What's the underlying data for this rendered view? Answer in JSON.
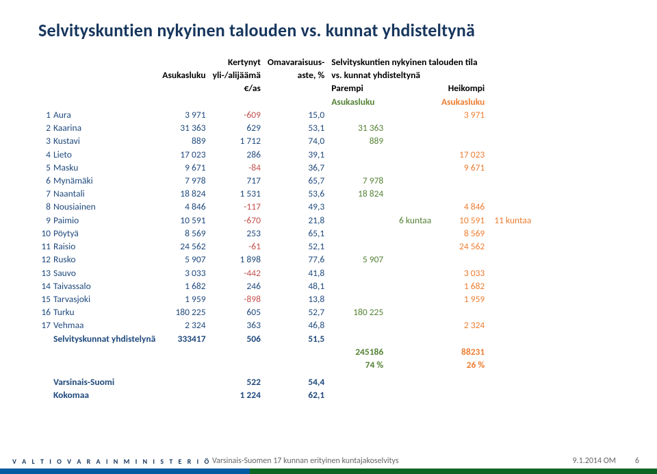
{
  "title": "Selvityskuntien nykyinen talouden vs. kunnat yhdisteltynä",
  "colors": {
    "title": "#17365d",
    "blue": "#1f497d",
    "red": "#c0504d",
    "green": "#548235",
    "orange": "#ed7d31"
  },
  "header": {
    "col_pop": "Asukasluku",
    "col_surplus_line1": "Kertynyt",
    "col_surplus_line2": "yli-/alijäämä",
    "col_surplus_line3": "€/as",
    "col_selfrate_line1": "Omavaraisuus-",
    "col_selfrate_line2": "aste, %",
    "status_line1": "Selvityskuntien nykyinen talouden tila",
    "status_line2": "vs. kunnat yhdisteltynä",
    "better": "Parempi",
    "worse": "Heikompi",
    "better_sub": "Asukasluku",
    "worse_sub": "Asukasluku"
  },
  "rows": [
    {
      "n": "1",
      "name": "Aura",
      "pop": "3 971",
      "surp": "-609",
      "sr": "15,0",
      "better": "",
      "worse": "3 971"
    },
    {
      "n": "2",
      "name": "Kaarina",
      "pop": "31 363",
      "surp": "629",
      "sr": "53,1",
      "better": "31 363",
      "worse": ""
    },
    {
      "n": "3",
      "name": "Kustavi",
      "pop": "889",
      "surp": "1 712",
      "sr": "74,0",
      "better": "889",
      "worse": ""
    },
    {
      "n": "4",
      "name": "Lieto",
      "pop": "17 023",
      "surp": "286",
      "sr": "39,1",
      "better": "",
      "worse": "17 023"
    },
    {
      "n": "5",
      "name": "Masku",
      "pop": "9 671",
      "surp": "-84",
      "sr": "36,7",
      "better": "",
      "worse": "9 671"
    },
    {
      "n": "6",
      "name": "Mynämäki",
      "pop": "7 978",
      "surp": "717",
      "sr": "65,7",
      "better": "7 978",
      "worse": ""
    },
    {
      "n": "7",
      "name": "Naantali",
      "pop": "18 824",
      "surp": "1 531",
      "sr": "53,6",
      "better": "18 824",
      "worse": ""
    },
    {
      "n": "8",
      "name": "Nousiainen",
      "pop": "4 846",
      "surp": "-117",
      "sr": "49,3",
      "better": "",
      "worse": "4 846"
    },
    {
      "n": "9",
      "name": "Paimio",
      "pop": "10 591",
      "surp": "-670",
      "sr": "21,8",
      "better": "",
      "worse": "10 591",
      "mid": "6 kuntaa",
      "note": "11 kuntaa"
    },
    {
      "n": "10",
      "name": "Pöytyä",
      "pop": "8 569",
      "surp": "253",
      "sr": "65,1",
      "better": "",
      "worse": "8 569"
    },
    {
      "n": "11",
      "name": "Raisio",
      "pop": "24 562",
      "surp": "-61",
      "sr": "52,1",
      "better": "",
      "worse": "24 562"
    },
    {
      "n": "12",
      "name": "Rusko",
      "pop": "5 907",
      "surp": "1 898",
      "sr": "77,6",
      "better": "5 907",
      "worse": ""
    },
    {
      "n": "13",
      "name": "Sauvo",
      "pop": "3 033",
      "surp": "-442",
      "sr": "41,8",
      "better": "",
      "worse": "3 033"
    },
    {
      "n": "14",
      "name": "Taivassalo",
      "pop": "1 682",
      "surp": "246",
      "sr": "48,1",
      "better": "",
      "worse": "1 682"
    },
    {
      "n": "15",
      "name": "Tarvasjoki",
      "pop": "1 959",
      "surp": "-898",
      "sr": "13,8",
      "better": "",
      "worse": "1 959"
    },
    {
      "n": "16",
      "name": "Turku",
      "pop": "180 225",
      "surp": "605",
      "sr": "52,7",
      "better": "180 225",
      "worse": ""
    },
    {
      "n": "17",
      "name": "Vehmaa",
      "pop": "2 324",
      "surp": "363",
      "sr": "46,8",
      "better": "",
      "worse": "2 324"
    }
  ],
  "summary": {
    "label": "Selvityskunnat yhdistelynä",
    "pop": "333417",
    "surp": "506",
    "sr": "51,5"
  },
  "totals": {
    "better_pop": "245186",
    "worse_pop": "88231",
    "better_pct": "74 %",
    "worse_pct": "26 %"
  },
  "extra": {
    "vs_label": "Varsinais-Suomi",
    "vs_surp": "522",
    "vs_sr": "54,4",
    "fi_label": "Kokomaa",
    "fi_surp": "1 224",
    "fi_sr": "62,1"
  },
  "footer": {
    "ministry": "V A L T I O V A R A I N M I N I S T E R I Ö",
    "note": "Varsinais-Suomen 17 kunnan erityinen kuntajakoselvitys",
    "date": "9.1.2014 OM",
    "page": "6"
  }
}
